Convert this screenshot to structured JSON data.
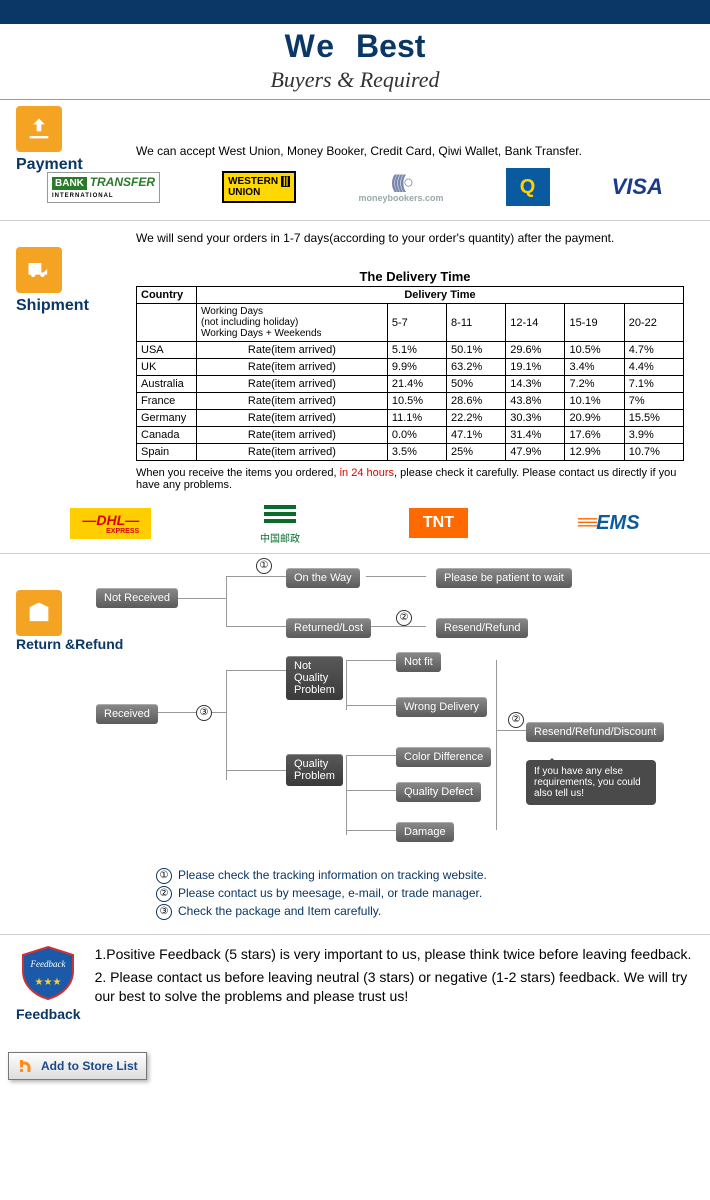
{
  "header": {
    "we": "We",
    "best": "Best",
    "subtitle": "Buyers & Required"
  },
  "payment": {
    "label": "Payment",
    "text": "We can accept West Union, Money Booker, Credit Card, Qiwi Wallet, Bank Transfer.",
    "logos": {
      "bank": "BANK",
      "transfer": "TRANSFER",
      "bt_sub": "INTERNATIONAL",
      "wu1": "WESTERN",
      "wu2": "UNION",
      "mb": "moneybookers.com",
      "qiwi": "Q",
      "visa": "VISA"
    }
  },
  "shipment": {
    "label": "Shipment",
    "intro": "We will send your orders in 1-7 days(according to your order's quantity) after the payment.",
    "table_title": "The Delivery Time",
    "h_country": "Country",
    "h_delivery": "Delivery Time",
    "wd1": "Working Days",
    "wd2": "(not including holiday)",
    "wd3": "Working Days + Weekends",
    "cols": [
      "5-7",
      "8-11",
      "12-14",
      "15-19",
      "20-22"
    ],
    "rate": "Rate(item arrived)",
    "rows": [
      {
        "c": "USA",
        "v": [
          "5.1%",
          "50.1%",
          "29.6%",
          "10.5%",
          "4.7%"
        ]
      },
      {
        "c": "UK",
        "v": [
          "9.9%",
          "63.2%",
          "19.1%",
          "3.4%",
          "4.4%"
        ]
      },
      {
        "c": "Australia",
        "v": [
          "21.4%",
          "50%",
          "14.3%",
          "7.2%",
          "7.1%"
        ]
      },
      {
        "c": "France",
        "v": [
          "10.5%",
          "28.6%",
          "43.8%",
          "10.1%",
          "7%"
        ]
      },
      {
        "c": "Germany",
        "v": [
          "11.1%",
          "22.2%",
          "30.3%",
          "20.9%",
          "15.5%"
        ]
      },
      {
        "c": "Canada",
        "v": [
          "0.0%",
          "47.1%",
          "31.4%",
          "17.6%",
          "3.9%"
        ]
      },
      {
        "c": "Spain",
        "v": [
          "3.5%",
          "25%",
          "47.9%",
          "12.9%",
          "10.7%"
        ]
      }
    ],
    "after1": "When you receive the items you ordered, ",
    "after_red": "in 24 hours",
    "after2": ", please check it carefully. Please contact us directly if you have any problems.",
    "ship_logos": {
      "dhl": "—DHL—",
      "dhl_sub": "EXPRESS",
      "cnpost": "中国邮政",
      "tnt": "TNT",
      "ems": "EMS"
    }
  },
  "returns": {
    "label": "Return &Refund",
    "nodes": {
      "not_received": "Not Received",
      "on_way": "On the Way",
      "patient": "Please be patient to wait",
      "returned": "Returned/Lost",
      "resend1": "Resend/Refund",
      "received": "Received",
      "nqp": "Not\nQuality\nProblem",
      "qp": "Quality\nProblem",
      "not_fit": "Not fit",
      "wrong": "Wrong Delivery",
      "colordiff": "Color Difference",
      "qdefect": "Quality Defect",
      "damage": "Damage",
      "rrd": "Resend/Refund/Discount",
      "speech": "If you have any else requirements, you could also tell us!"
    },
    "circles": {
      "c1": "①",
      "c2": "②",
      "c3": "③",
      "c2b": "②"
    },
    "notes": [
      "Please check the tracking information on tracking website.",
      "Please contact us by meesage, e-mail, or trade manager.",
      "Check the package and Item carefully."
    ]
  },
  "feedback": {
    "label": "Feedback",
    "badge": "Feedback",
    "line1": "1.Positive Feedback (5 stars) is very important to us, please think twice before leaving feedback.",
    "line2": "2. Please contact us before leaving neutral (3 stars) or negative (1-2 stars) feedback. We will try our best to solve the problems and please trust us!"
  },
  "footer": {
    "btn": "Add to Store List"
  }
}
